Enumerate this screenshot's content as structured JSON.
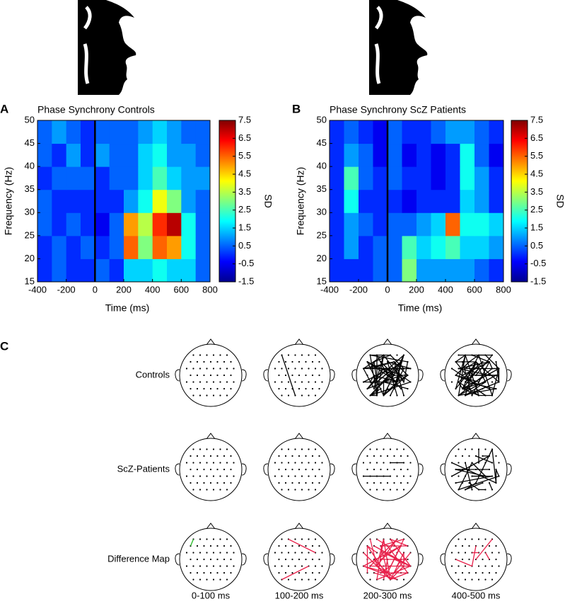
{
  "chart_data": [
    {
      "type": "heatmap",
      "panel_label": "A",
      "title": "Phase Synchrony Controls",
      "x_label": "Time (ms)",
      "y_label": "Frequency (Hz)",
      "colorbar_label": "SD",
      "x_edges": [
        -400,
        -300,
        -200,
        -100,
        0,
        100,
        200,
        300,
        400,
        500,
        600,
        700,
        800
      ],
      "y_edges": [
        15,
        20,
        25,
        30,
        35,
        40,
        45,
        50
      ],
      "z": [
        [
          0.0,
          0.5,
          0.0,
          0.0,
          0.5,
          0.0,
          1.5,
          1.5,
          2.0,
          1.5,
          1.5,
          0.5
        ],
        [
          0.0,
          0.5,
          0.0,
          0.5,
          0.0,
          0.5,
          5.5,
          3.0,
          5.5,
          5.0,
          2.0,
          0.5
        ],
        [
          0.5,
          0.0,
          0.5,
          0.0,
          -0.5,
          0.5,
          5.0,
          3.5,
          6.0,
          7.0,
          2.0,
          0.5
        ],
        [
          0.5,
          0.0,
          0.0,
          0.0,
          0.0,
          0.0,
          1.0,
          2.0,
          4.0,
          3.0,
          1.0,
          0.5
        ],
        [
          0.0,
          0.5,
          0.5,
          0.5,
          0.0,
          0.5,
          0.5,
          1.5,
          2.5,
          1.5,
          1.0,
          1.0
        ],
        [
          0.5,
          0.0,
          1.0,
          0.0,
          1.0,
          0.5,
          0.5,
          1.5,
          2.0,
          1.0,
          1.0,
          0.5
        ],
        [
          0.5,
          1.0,
          0.5,
          0.0,
          0.5,
          0.5,
          0.5,
          1.0,
          1.5,
          1.0,
          0.5,
          0.5
        ]
      ],
      "xlim": [
        -400,
        800
      ],
      "xticks": [
        -400,
        -200,
        0,
        200,
        400,
        600,
        800
      ],
      "ylim": [
        15,
        50
      ],
      "yticks": [
        15,
        20,
        25,
        30,
        35,
        40,
        45,
        50
      ],
      "clim": [
        -1.5,
        7.5
      ],
      "cticks": [
        -1.5,
        -0.5,
        0.5,
        1.5,
        2.5,
        3.5,
        4.5,
        5.5,
        6.5,
        7.5
      ],
      "colormap": "jet",
      "marker_x": 0
    },
    {
      "type": "heatmap",
      "panel_label": "B",
      "title": "Phase Synchrony ScZ Patients",
      "x_label": "Time (ms)",
      "y_label": "Frequency (Hz)",
      "colorbar_label": "SD",
      "x_edges": [
        -400,
        -300,
        -200,
        -100,
        0,
        100,
        200,
        300,
        400,
        500,
        600,
        700,
        800
      ],
      "y_edges": [
        15,
        20,
        25,
        30,
        35,
        40,
        45,
        50
      ],
      "z": [
        [
          0.0,
          0.0,
          0.0,
          0.5,
          0.5,
          3.0,
          1.0,
          1.0,
          1.0,
          1.0,
          0.5,
          0.0
        ],
        [
          0.0,
          1.0,
          0.0,
          0.5,
          0.5,
          2.5,
          1.5,
          2.0,
          2.5,
          1.5,
          1.5,
          1.0
        ],
        [
          0.0,
          1.0,
          0.5,
          0.0,
          0.5,
          0.5,
          1.0,
          1.5,
          5.5,
          2.0,
          2.0,
          1.5
        ],
        [
          0.0,
          2.0,
          0.0,
          0.0,
          0.0,
          -0.5,
          0.0,
          0.0,
          0.0,
          1.5,
          1.0,
          0.0
        ],
        [
          0.0,
          2.5,
          0.5,
          0.0,
          0.5,
          0.0,
          0.0,
          -0.5,
          0.0,
          2.0,
          1.0,
          0.0
        ],
        [
          0.0,
          1.0,
          0.5,
          -0.5,
          0.5,
          -0.5,
          0.0,
          -0.5,
          0.0,
          2.0,
          0.5,
          -0.5
        ],
        [
          0.0,
          0.5,
          0.0,
          -0.5,
          0.5,
          0.0,
          0.0,
          0.5,
          1.0,
          1.0,
          0.5,
          0.0
        ]
      ],
      "xlim": [
        -400,
        800
      ],
      "xticks": [
        -400,
        -200,
        0,
        200,
        400,
        600,
        800
      ],
      "ylim": [
        15,
        50
      ],
      "yticks": [
        15,
        20,
        25,
        30,
        35,
        40,
        45,
        50
      ],
      "clim": [
        -1.5,
        7.5
      ],
      "cticks": [
        -1.5,
        -0.5,
        0.5,
        1.5,
        2.5,
        3.5,
        4.5,
        5.5,
        6.5,
        7.5
      ],
      "colormap": "jet",
      "marker_x": 0
    }
  ],
  "panel_c": {
    "label": "C",
    "rows": [
      "Controls",
      "ScZ-Patients",
      "Difference Map"
    ],
    "columns": [
      "0-100 ms",
      "100-200 ms",
      "200-300 ms",
      "400-500 ms"
    ]
  }
}
